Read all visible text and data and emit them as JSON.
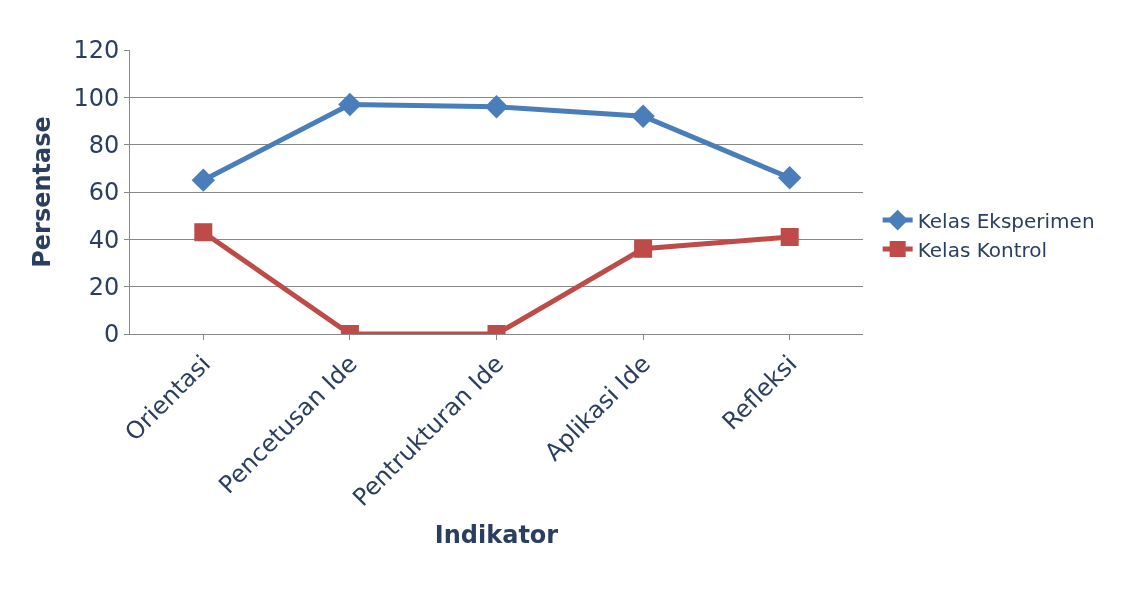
{
  "chart_data": {
    "type": "line",
    "xlabel": "Indikator",
    "ylabel": "Persentase",
    "categories": [
      "Orientasi",
      "Pencetusan Ide",
      "Pentrukturan Ide",
      "Aplikasi Ide",
      "Refleksi"
    ],
    "series": [
      {
        "name": "Kelas Eksperimen",
        "color": "#4a7ebb",
        "marker": "diamond",
        "values": [
          65,
          97,
          96,
          92,
          66
        ]
      },
      {
        "name": "Kelas Kontrol",
        "color": "#be4b48",
        "marker": "square",
        "values": [
          43,
          0,
          0,
          36,
          41
        ]
      }
    ],
    "ylim": [
      0,
      120
    ],
    "yticks": [
      0,
      20,
      40,
      60,
      80,
      100,
      120
    ],
    "grid": "y",
    "legend": "right",
    "line_style": "solid"
  }
}
